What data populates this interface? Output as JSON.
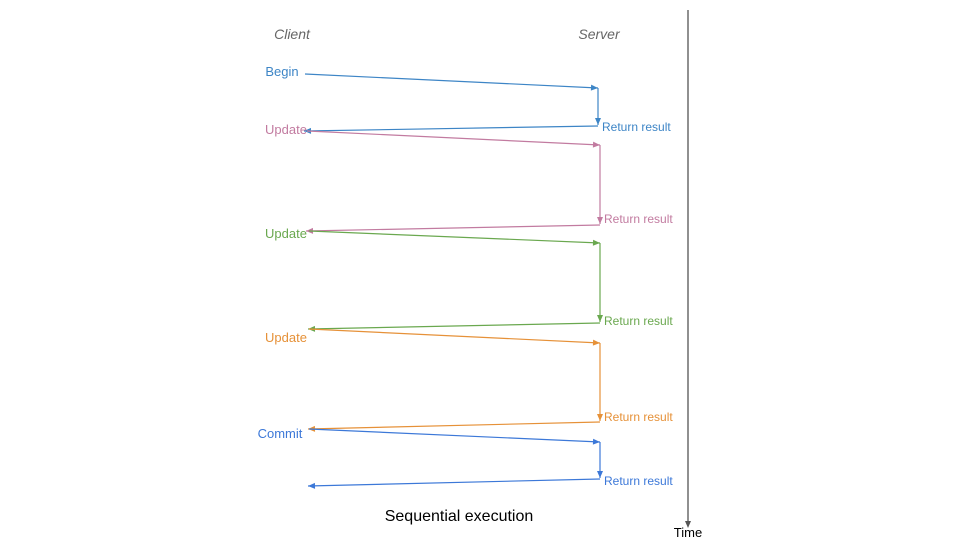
{
  "headers": {
    "client": "Client",
    "server": "Server"
  },
  "caption": "Sequential execution",
  "time_axis": {
    "label": "Time",
    "color": "#555555"
  },
  "steps": [
    {
      "request": "Begin",
      "response": "Return result",
      "color": "#3d85c6"
    },
    {
      "request": "Update",
      "response": "Return result",
      "color": "#c27ba0"
    },
    {
      "request": "Update",
      "response": "Return result",
      "color": "#6aa84f"
    },
    {
      "request": "Update",
      "response": "Return result",
      "color": "#e69138"
    },
    {
      "request": "Commit",
      "response": "Return result",
      "color": "#3c78d8"
    }
  ]
}
